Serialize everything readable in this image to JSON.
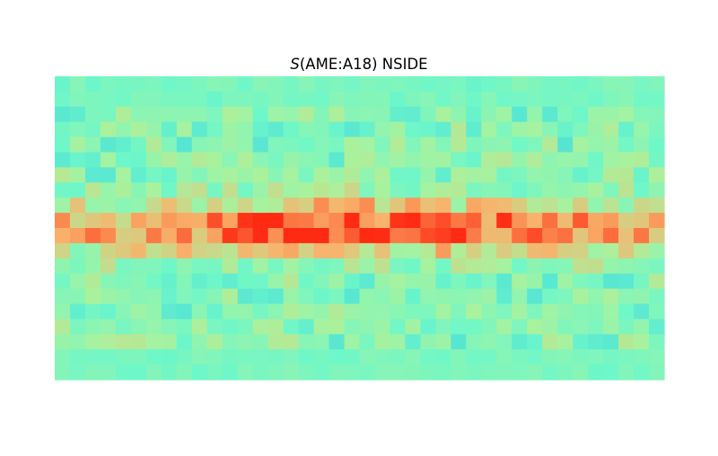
{
  "chart_data": {
    "type": "heatmap",
    "title_symbol": "S",
    "title_rest": "(AME:A18) NSIDE",
    "colormap": "rainbow",
    "colors": {
      "low": "#1ab8ea",
      "mid_low": "#6ef7c9",
      "mid": "#a9f29d",
      "mid_high": "#f9b26b",
      "high": "#ff2a12"
    },
    "grid": false,
    "axes_visible": false,
    "legend": "none",
    "band": "galactic-plane"
  }
}
